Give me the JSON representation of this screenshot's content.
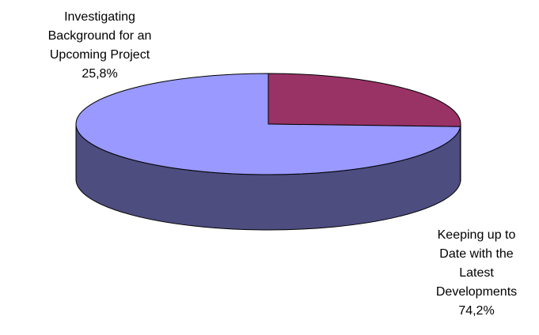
{
  "chart_data": {
    "type": "pie",
    "style": "3d",
    "series": [
      {
        "label_lines": [
          "Investigating",
          "Background for an",
          "Upcoming Project",
          "25,8%"
        ],
        "value": 25.8,
        "color": "#993366",
        "side_color": "#5c1f3d"
      },
      {
        "label_lines": [
          "Keeping up to",
          "Date with the",
          "Latest",
          "Developments",
          "74,2%"
        ],
        "value": 74.2,
        "color": "#9999ff",
        "side_color": "#4d4d80"
      }
    ],
    "legend": "none"
  }
}
